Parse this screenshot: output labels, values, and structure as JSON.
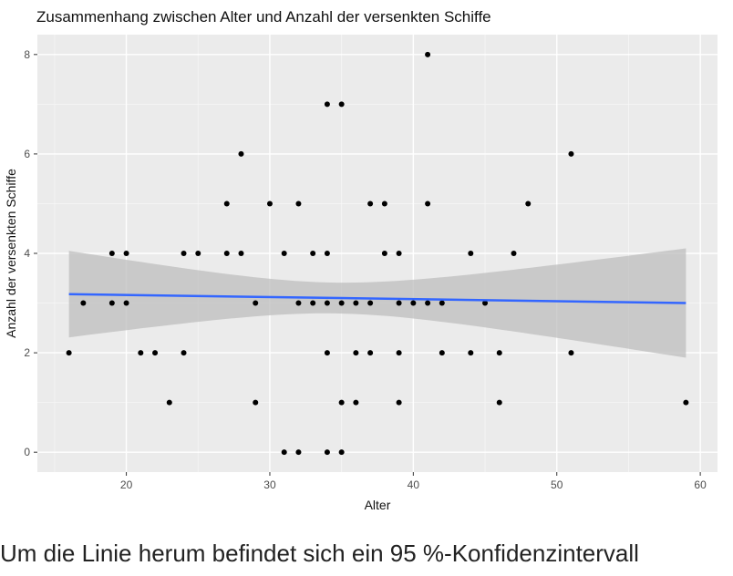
{
  "chart_data": {
    "type": "scatter",
    "title": "Zusammenhang zwischen Alter und Anzahl der versenkten Schiffe",
    "xlabel": "Alter",
    "ylabel": "Anzahl der versenkten Schiffe",
    "xlim": [
      13.8,
      61.2
    ],
    "ylim": [
      -0.4,
      8.4
    ],
    "x_ticks": [
      20,
      30,
      40,
      50,
      60
    ],
    "y_ticks": [
      0,
      2,
      4,
      6,
      8
    ],
    "grid": true,
    "points": [
      [
        16,
        2
      ],
      [
        17,
        3
      ],
      [
        19,
        4
      ],
      [
        19,
        3
      ],
      [
        20,
        4
      ],
      [
        20,
        3
      ],
      [
        21,
        2
      ],
      [
        22,
        2
      ],
      [
        23,
        1
      ],
      [
        24,
        4
      ],
      [
        24,
        2
      ],
      [
        25,
        4
      ],
      [
        27,
        5
      ],
      [
        27,
        4
      ],
      [
        28,
        6
      ],
      [
        28,
        4
      ],
      [
        29,
        3
      ],
      [
        29,
        1
      ],
      [
        30,
        5
      ],
      [
        31,
        4
      ],
      [
        31,
        0
      ],
      [
        32,
        5
      ],
      [
        32,
        3
      ],
      [
        32,
        0
      ],
      [
        33,
        4
      ],
      [
        33,
        3
      ],
      [
        34,
        7
      ],
      [
        34,
        4
      ],
      [
        34,
        3
      ],
      [
        34,
        2
      ],
      [
        34,
        0
      ],
      [
        35,
        7
      ],
      [
        35,
        3
      ],
      [
        35,
        1
      ],
      [
        35,
        0
      ],
      [
        36,
        3
      ],
      [
        36,
        2
      ],
      [
        36,
        1
      ],
      [
        37,
        5
      ],
      [
        37,
        3
      ],
      [
        37,
        2
      ],
      [
        38,
        5
      ],
      [
        38,
        4
      ],
      [
        39,
        4
      ],
      [
        39,
        3
      ],
      [
        39,
        2
      ],
      [
        39,
        1
      ],
      [
        40,
        3
      ],
      [
        41,
        8
      ],
      [
        41,
        5
      ],
      [
        41,
        3
      ],
      [
        42,
        3
      ],
      [
        42,
        2
      ],
      [
        44,
        4
      ],
      [
        44,
        2
      ],
      [
        45,
        3
      ],
      [
        46,
        2
      ],
      [
        46,
        1
      ],
      [
        47,
        4
      ],
      [
        48,
        5
      ],
      [
        51,
        6
      ],
      [
        51,
        2
      ],
      [
        59,
        1
      ]
    ],
    "smooth": {
      "method": "lm",
      "x_range": [
        16,
        59
      ],
      "fit": [
        3.18,
        3.0
      ],
      "band_lower": [
        2.31,
        1.9
      ],
      "band_upper": [
        4.05,
        4.1
      ],
      "band_lower_min": 2.8,
      "band_upper_max": 3.42,
      "band_center_x": 34.5,
      "line_color": "#3366ff",
      "band_color": "#cccccc"
    },
    "panel_color": "#ebebeb"
  },
  "caption": "Um die Linie herum befindet sich ein 95 %-Konfidenzintervall"
}
